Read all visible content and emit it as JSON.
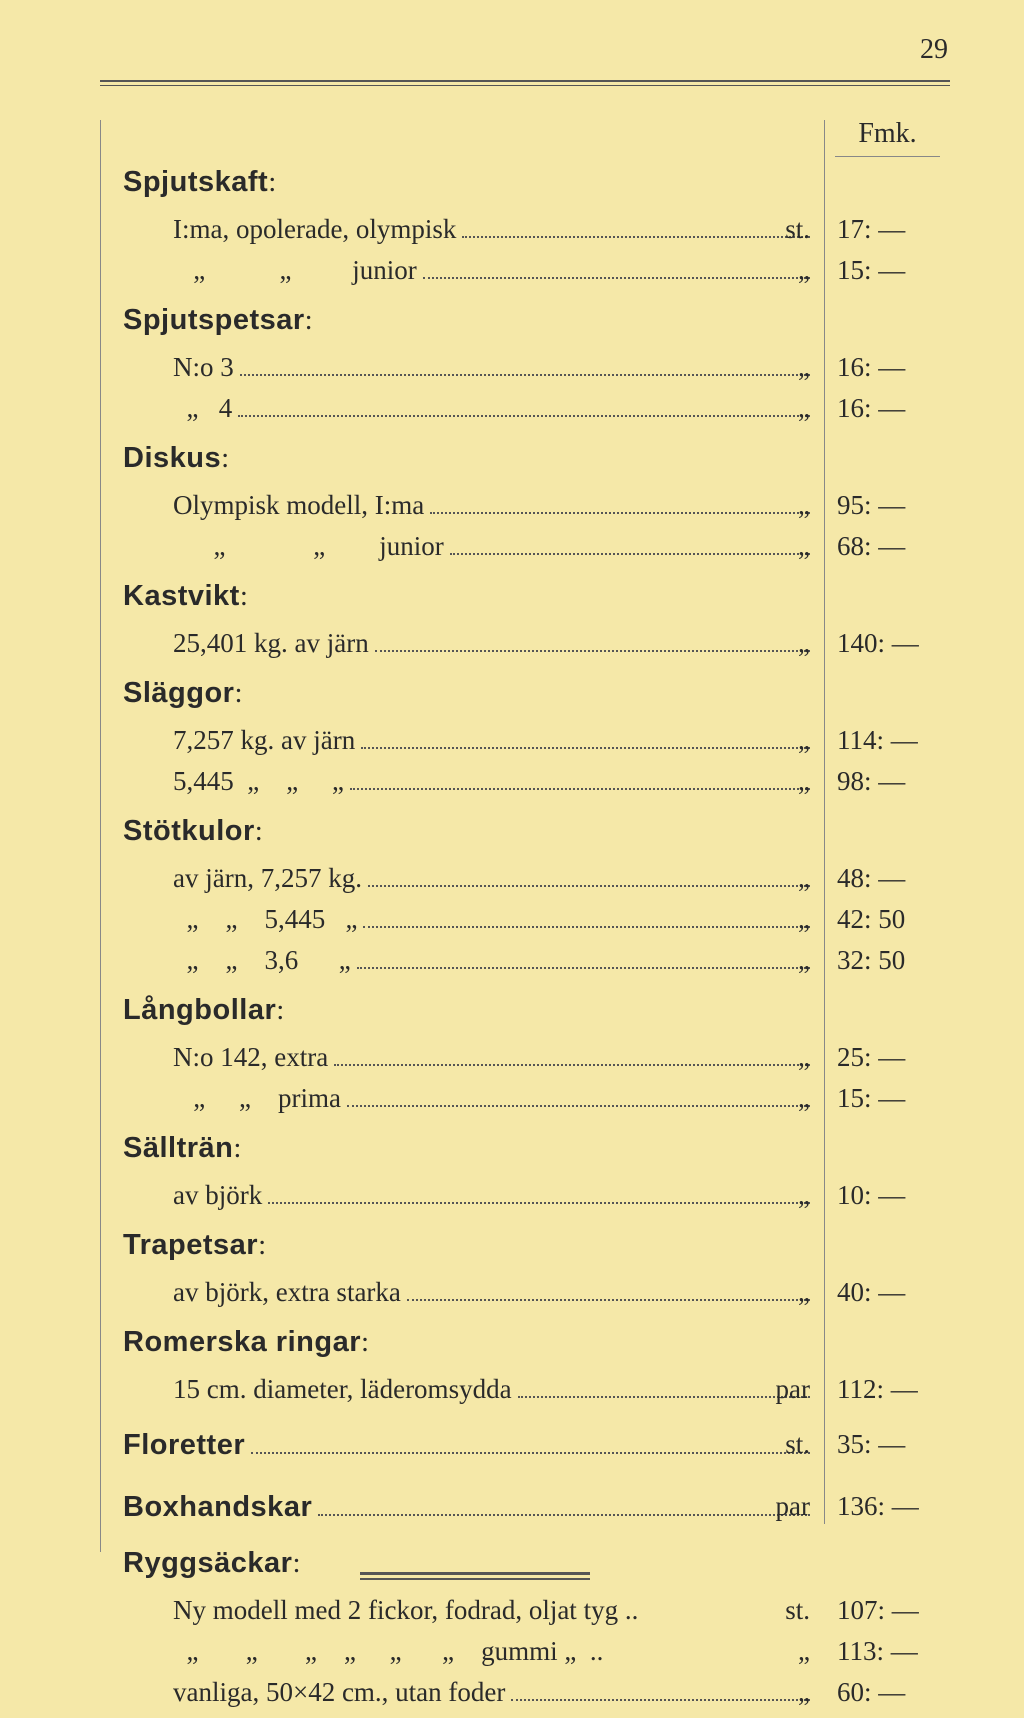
{
  "page_number": "29",
  "fmk_header": "Fmk.",
  "sections": [
    {
      "type": "heading",
      "label": "Spjutskaft",
      "suffix": ":"
    },
    {
      "type": "item",
      "indent": 1,
      "label": "I:ma, opolerade, olympisk",
      "unit": "st.",
      "price": "17: —"
    },
    {
      "type": "item",
      "indent": 1,
      "label": "   „           „         junior",
      "unit": "„",
      "price": "15: —"
    },
    {
      "type": "heading",
      "label": "Spjutspetsar",
      "suffix": ":"
    },
    {
      "type": "item",
      "indent": 1,
      "label": "N:o 3",
      "unit": "„",
      "price": "16: —"
    },
    {
      "type": "item",
      "indent": 1,
      "label": "  „   4",
      "unit": "„",
      "price": "16: —"
    },
    {
      "type": "heading",
      "label": "Diskus",
      "suffix": ":"
    },
    {
      "type": "item",
      "indent": 1,
      "label": "Olympisk modell, I:ma",
      "unit": "„",
      "price": "95: —"
    },
    {
      "type": "item",
      "indent": 1,
      "label": "      „             „        junior",
      "unit": "„",
      "price": "68: —"
    },
    {
      "type": "heading",
      "label": "Kastvikt",
      "suffix": ":"
    },
    {
      "type": "item",
      "indent": 1,
      "label": "25,401 kg. av järn",
      "unit": "„",
      "price": "140: —"
    },
    {
      "type": "heading",
      "label": "Släggor",
      "suffix": ":"
    },
    {
      "type": "item",
      "indent": 1,
      "label": "7,257 kg. av järn",
      "unit": "„",
      "price": "114: —"
    },
    {
      "type": "item",
      "indent": 1,
      "label": "5,445  „    „     „",
      "unit": "„",
      "price": "98: —"
    },
    {
      "type": "heading",
      "label": "Stötkulor",
      "suffix": ":"
    },
    {
      "type": "item",
      "indent": 1,
      "label": "av järn, 7,257 kg.",
      "unit": "„",
      "price": "48: —"
    },
    {
      "type": "item",
      "indent": 1,
      "label": "  „    „    5,445   „",
      "unit": "„",
      "price": "42: 50"
    },
    {
      "type": "item",
      "indent": 1,
      "label": "  „    „    3,6      „",
      "unit": "„",
      "price": "32: 50"
    },
    {
      "type": "heading",
      "label": "Långbollar",
      "suffix": ":"
    },
    {
      "type": "item",
      "indent": 1,
      "label": "N:o 142, extra",
      "unit": "„",
      "price": "25: —"
    },
    {
      "type": "item",
      "indent": 1,
      "label": "   „     „    prima",
      "unit": "„",
      "price": "15: —"
    },
    {
      "type": "heading",
      "label": "Sällträn",
      "suffix": ":"
    },
    {
      "type": "item",
      "indent": 1,
      "label": "av björk",
      "unit": "„",
      "price": "10: —"
    },
    {
      "type": "heading",
      "label": "Trapetsar",
      "suffix": ":"
    },
    {
      "type": "item",
      "indent": 1,
      "label": "av björk, extra starka",
      "unit": "„",
      "price": "40: —"
    },
    {
      "type": "heading",
      "label": "Romerska ringar",
      "suffix": ":"
    },
    {
      "type": "item",
      "indent": 1,
      "label": "15 cm. diameter, läderomsydda",
      "unit": "par",
      "price": "112: —"
    },
    {
      "type": "heading-item",
      "label": "Floretter",
      "unit": "st.",
      "price": "35: —"
    },
    {
      "type": "heading-item",
      "label": "Boxhandskar",
      "unit": "par",
      "price": "136: —"
    },
    {
      "type": "heading",
      "label": "Ryggsäckar",
      "suffix": ":"
    },
    {
      "type": "item",
      "indent": 1,
      "label": "Ny modell med 2 fickor, fodrad, oljat tyg ..",
      "unit": "st.",
      "price": "107: —",
      "nodots": true
    },
    {
      "type": "item",
      "indent": 1,
      "label": "  „       „       „    „     „      „    gummi „  ..",
      "unit": "„",
      "price": "113: —",
      "nodots": true
    },
    {
      "type": "item",
      "indent": 1,
      "label": "vanliga, 50×42 cm., utan foder",
      "unit": "„",
      "price": "60: —"
    }
  ]
}
